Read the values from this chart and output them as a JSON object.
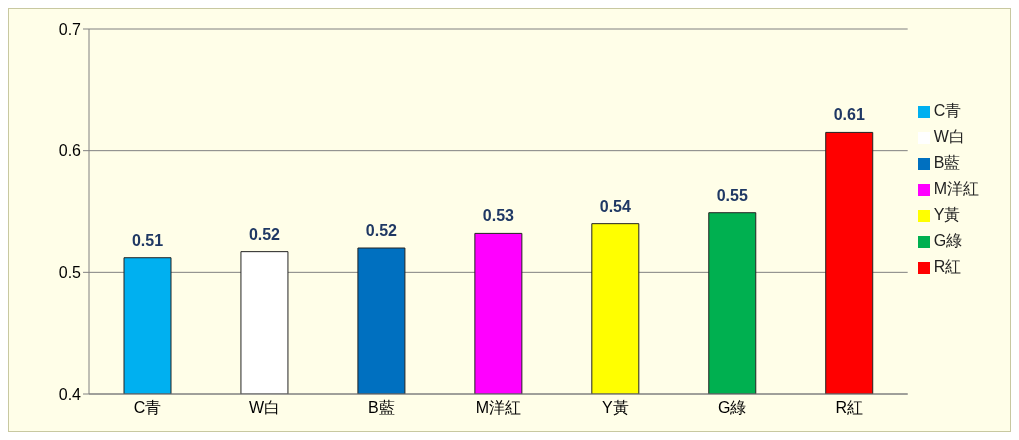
{
  "chart_data": {
    "type": "bar",
    "categories": [
      "C青",
      "W白",
      "B藍",
      "M洋紅",
      "Y黃",
      "G綠",
      "R紅"
    ],
    "stacked": true,
    "series": [
      {
        "name": "C青",
        "color": "#00b0f0",
        "values": [
          0.512,
          null,
          null,
          null,
          null,
          null,
          null
        ],
        "value_labels": [
          "0.51",
          null,
          null,
          null,
          null,
          null,
          null
        ]
      },
      {
        "name": "W白",
        "color": "#ffffff",
        "values": [
          null,
          0.517,
          null,
          null,
          null,
          null,
          null
        ],
        "value_labels": [
          null,
          "0.52",
          null,
          null,
          null,
          null,
          null
        ]
      },
      {
        "name": "B藍",
        "color": "#0070c0",
        "values": [
          null,
          null,
          0.52,
          null,
          null,
          null,
          null
        ],
        "value_labels": [
          null,
          null,
          "0.52",
          null,
          null,
          null,
          null
        ]
      },
      {
        "name": "M洋紅",
        "color": "#ff00ff",
        "values": [
          null,
          null,
          null,
          0.532,
          null,
          null,
          null
        ],
        "value_labels": [
          null,
          null,
          null,
          "0.53",
          null,
          null,
          null
        ]
      },
      {
        "name": "Y黃",
        "color": "#ffff00",
        "values": [
          null,
          null,
          null,
          null,
          0.54,
          null,
          null
        ],
        "value_labels": [
          null,
          null,
          null,
          null,
          "0.54",
          null,
          null
        ]
      },
      {
        "name": "G綠",
        "color": "#00b050",
        "values": [
          null,
          null,
          null,
          null,
          null,
          0.549,
          null
        ],
        "value_labels": [
          null,
          null,
          null,
          null,
          null,
          "0.55",
          null
        ]
      },
      {
        "name": "R紅",
        "color": "#ff0000",
        "values": [
          null,
          null,
          null,
          null,
          null,
          null,
          0.615
        ],
        "value_labels": [
          null,
          null,
          null,
          null,
          null,
          null,
          "0.61"
        ]
      }
    ],
    "ylim": [
      0.4,
      0.7
    ],
    "yticks": [
      0.4,
      0.5,
      0.6,
      0.7
    ],
    "grid": "y",
    "legend": "right"
  }
}
